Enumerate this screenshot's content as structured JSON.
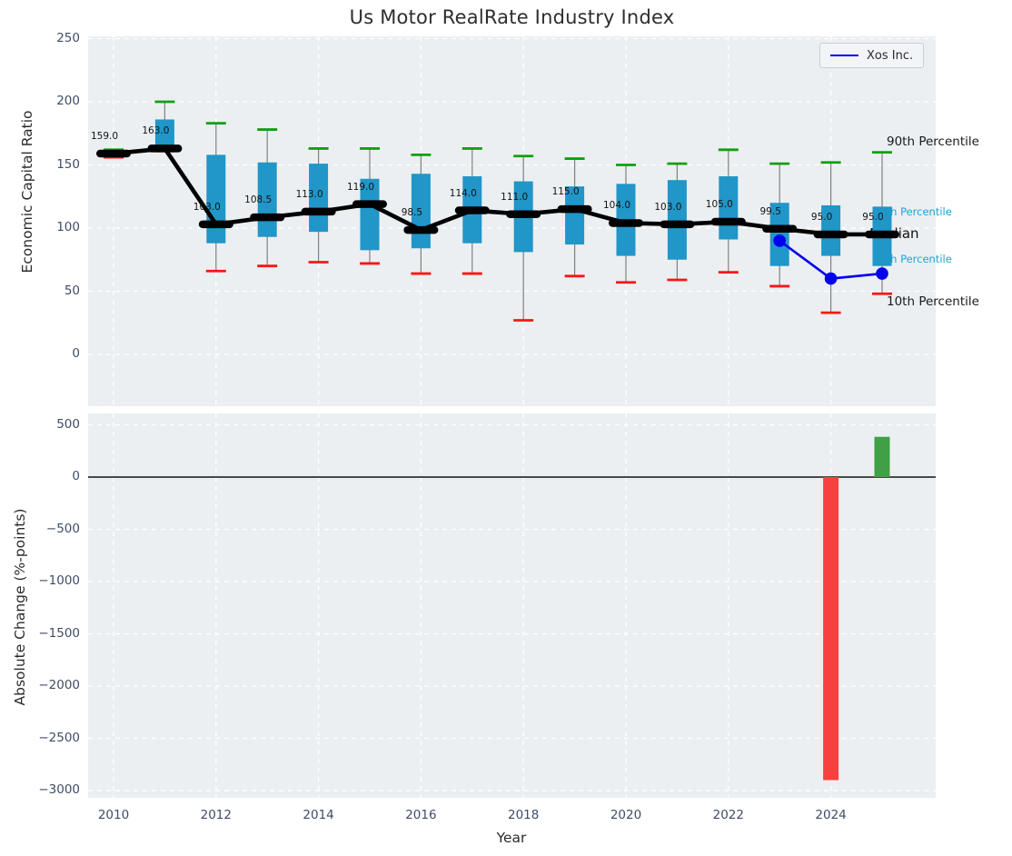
{
  "style": {
    "figure_bg": "#ffffff",
    "plot_bg": "#eceff1",
    "grid_color": "#ffffff",
    "tick_text": "#3f4d66",
    "box_fill": "#2196c8",
    "whisker_line": "#808080",
    "cap_90th": "#10a010",
    "cap_10th": "#fb1515",
    "median_line": "#000000",
    "xos_line": "#0000ee",
    "bar_negative": "#f8403f",
    "bar_positive": "#3fa045",
    "cyan_label": "#1aa5d5"
  },
  "chart_data": [
    {
      "type": "boxplot-line",
      "title": "Us Motor RealRate Industry Index",
      "ylabel": "Economic Capital Ratio",
      "ylim": [
        -41,
        252
      ],
      "yticks": [
        {
          "value": 250,
          "label": "250"
        },
        {
          "value": 200,
          "label": "200"
        },
        {
          "value": 150,
          "label": "150"
        },
        {
          "value": 100,
          "label": "100"
        },
        {
          "value": 50,
          "label": "50"
        },
        {
          "value": 0,
          "label": "0"
        }
      ],
      "grid_years": [
        2010,
        2012,
        2014,
        2016,
        2018,
        2020,
        2022,
        2024
      ],
      "legend": {
        "label": "Xos Inc.",
        "position": "upper right"
      },
      "annotations": {
        "p90": "90th Percentile",
        "p75": "75th Percentile",
        "median": "Median",
        "p25": "25th Percentile",
        "p10": "10th Percentile"
      },
      "boxes": [
        {
          "year": 2010,
          "p10": 156,
          "p25": 157.5,
          "median": 159,
          "p75": 160.5,
          "p90": 162,
          "label": "159.0"
        },
        {
          "year": 2011,
          "p10": 161,
          "p25": 162.5,
          "median": 163,
          "p75": 186,
          "p90": 200,
          "label": "163.0"
        },
        {
          "year": 2012,
          "p10": 66,
          "p25": 88,
          "median": 103,
          "p75": 158,
          "p90": 183,
          "label": "103.0"
        },
        {
          "year": 2013,
          "p10": 70,
          "p25": 93,
          "median": 108.5,
          "p75": 152,
          "p90": 178,
          "label": "108.5"
        },
        {
          "year": 2014,
          "p10": 73,
          "p25": 97,
          "median": 113,
          "p75": 151,
          "p90": 163,
          "label": "113.0"
        },
        {
          "year": 2015,
          "p10": 72,
          "p25": 82.5,
          "median": 119,
          "p75": 139,
          "p90": 163,
          "label": "119.0"
        },
        {
          "year": 2016,
          "p10": 64,
          "p25": 84,
          "median": 98.5,
          "p75": 143,
          "p90": 158,
          "label": "98.5"
        },
        {
          "year": 2017,
          "p10": 64,
          "p25": 88,
          "median": 114,
          "p75": 141,
          "p90": 163,
          "label": "114.0"
        },
        {
          "year": 2018,
          "p10": 27,
          "p25": 81,
          "median": 111,
          "p75": 137,
          "p90": 157,
          "label": "111.0"
        },
        {
          "year": 2019,
          "p10": 62,
          "p25": 87,
          "median": 115,
          "p75": 133,
          "p90": 155,
          "label": "115.0"
        },
        {
          "year": 2020,
          "p10": 57,
          "p25": 78,
          "median": 104,
          "p75": 135,
          "p90": 150,
          "label": "104.0"
        },
        {
          "year": 2021,
          "p10": 59,
          "p25": 75,
          "median": 103,
          "p75": 138,
          "p90": 151,
          "label": "103.0"
        },
        {
          "year": 2022,
          "p10": 65,
          "p25": 91,
          "median": 105,
          "p75": 141,
          "p90": 162,
          "label": "105.0"
        },
        {
          "year": 2023,
          "p10": 54,
          "p25": 70,
          "median": 99.5,
          "p75": 120,
          "p90": 151,
          "label": "99.5"
        },
        {
          "year": 2024,
          "p10": 33,
          "p25": 78,
          "median": 95,
          "p75": 118,
          "p90": 152,
          "label": "95.0"
        },
        {
          "year": 2025,
          "p10": 48,
          "p25": 70,
          "median": 95,
          "p75": 117,
          "p90": 160,
          "label": "95.0"
        }
      ],
      "series": [
        {
          "name": "Xos Inc.",
          "points": [
            [
              2023,
              90
            ],
            [
              2024,
              60
            ],
            [
              2025,
              64
            ]
          ]
        }
      ]
    },
    {
      "type": "bar",
      "ylabel": "Absolute Change (%-points)",
      "xlabel": "Year",
      "ylim": [
        -3090,
        610
      ],
      "yticks": [
        {
          "value": 500,
          "label": "500"
        },
        {
          "value": 0,
          "label": "0"
        },
        {
          "value": -500,
          "label": "−500"
        },
        {
          "value": -1000,
          "label": "−1000"
        },
        {
          "value": -1500,
          "label": "−1500"
        },
        {
          "value": -2000,
          "label": "−2000"
        },
        {
          "value": -2500,
          "label": "−2500"
        },
        {
          "value": -3000,
          "label": "−3000"
        }
      ],
      "xticks": [
        {
          "value": 2010,
          "label": "2010"
        },
        {
          "value": 2012,
          "label": "2012"
        },
        {
          "value": 2014,
          "label": "2014"
        },
        {
          "value": 2016,
          "label": "2016"
        },
        {
          "value": 2018,
          "label": "2018"
        },
        {
          "value": 2020,
          "label": "2020"
        },
        {
          "value": 2022,
          "label": "2022"
        },
        {
          "value": 2024,
          "label": "2024"
        }
      ],
      "zero_line": true,
      "bars": [
        {
          "year": 2024,
          "value": -2900,
          "color": "#f8403f"
        },
        {
          "year": 2025,
          "value": 385,
          "color": "#3fa045"
        }
      ]
    }
  ]
}
